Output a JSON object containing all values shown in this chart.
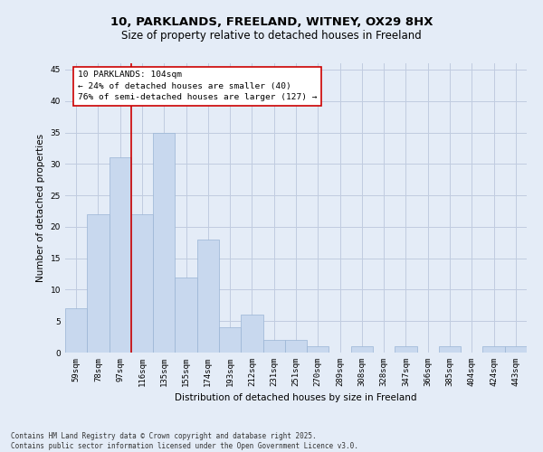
{
  "title1": "10, PARKLANDS, FREELAND, WITNEY, OX29 8HX",
  "title2": "Size of property relative to detached houses in Freeland",
  "xlabel": "Distribution of detached houses by size in Freeland",
  "ylabel": "Number of detached properties",
  "categories": [
    "59sqm",
    "78sqm",
    "97sqm",
    "116sqm",
    "135sqm",
    "155sqm",
    "174sqm",
    "193sqm",
    "212sqm",
    "231sqm",
    "251sqm",
    "270sqm",
    "289sqm",
    "308sqm",
    "328sqm",
    "347sqm",
    "366sqm",
    "385sqm",
    "404sqm",
    "424sqm",
    "443sqm"
  ],
  "values": [
    7,
    22,
    31,
    22,
    35,
    12,
    18,
    4,
    6,
    2,
    2,
    1,
    0,
    1,
    0,
    1,
    0,
    1,
    0,
    1,
    1
  ],
  "bar_color": "#c8d8ee",
  "bar_edge_color": "#9ab4d4",
  "property_line_color": "#cc0000",
  "annotation_text": "10 PARKLANDS: 104sqm\n← 24% of detached houses are smaller (40)\n76% of semi-detached houses are larger (127) →",
  "annotation_box_color": "#ffffff",
  "annotation_box_edge": "#cc0000",
  "grid_color": "#c0cce0",
  "background_color": "#e4ecf7",
  "ylim": [
    0,
    46
  ],
  "yticks": [
    0,
    5,
    10,
    15,
    20,
    25,
    30,
    35,
    40,
    45
  ],
  "footer": "Contains HM Land Registry data © Crown copyright and database right 2025.\nContains public sector information licensed under the Open Government Licence v3.0.",
  "title_fontsize": 9.5,
  "subtitle_fontsize": 8.5,
  "tick_fontsize": 6.5,
  "ylabel_fontsize": 7.5,
  "xlabel_fontsize": 7.5,
  "annotation_fontsize": 6.8,
  "footer_fontsize": 5.5
}
